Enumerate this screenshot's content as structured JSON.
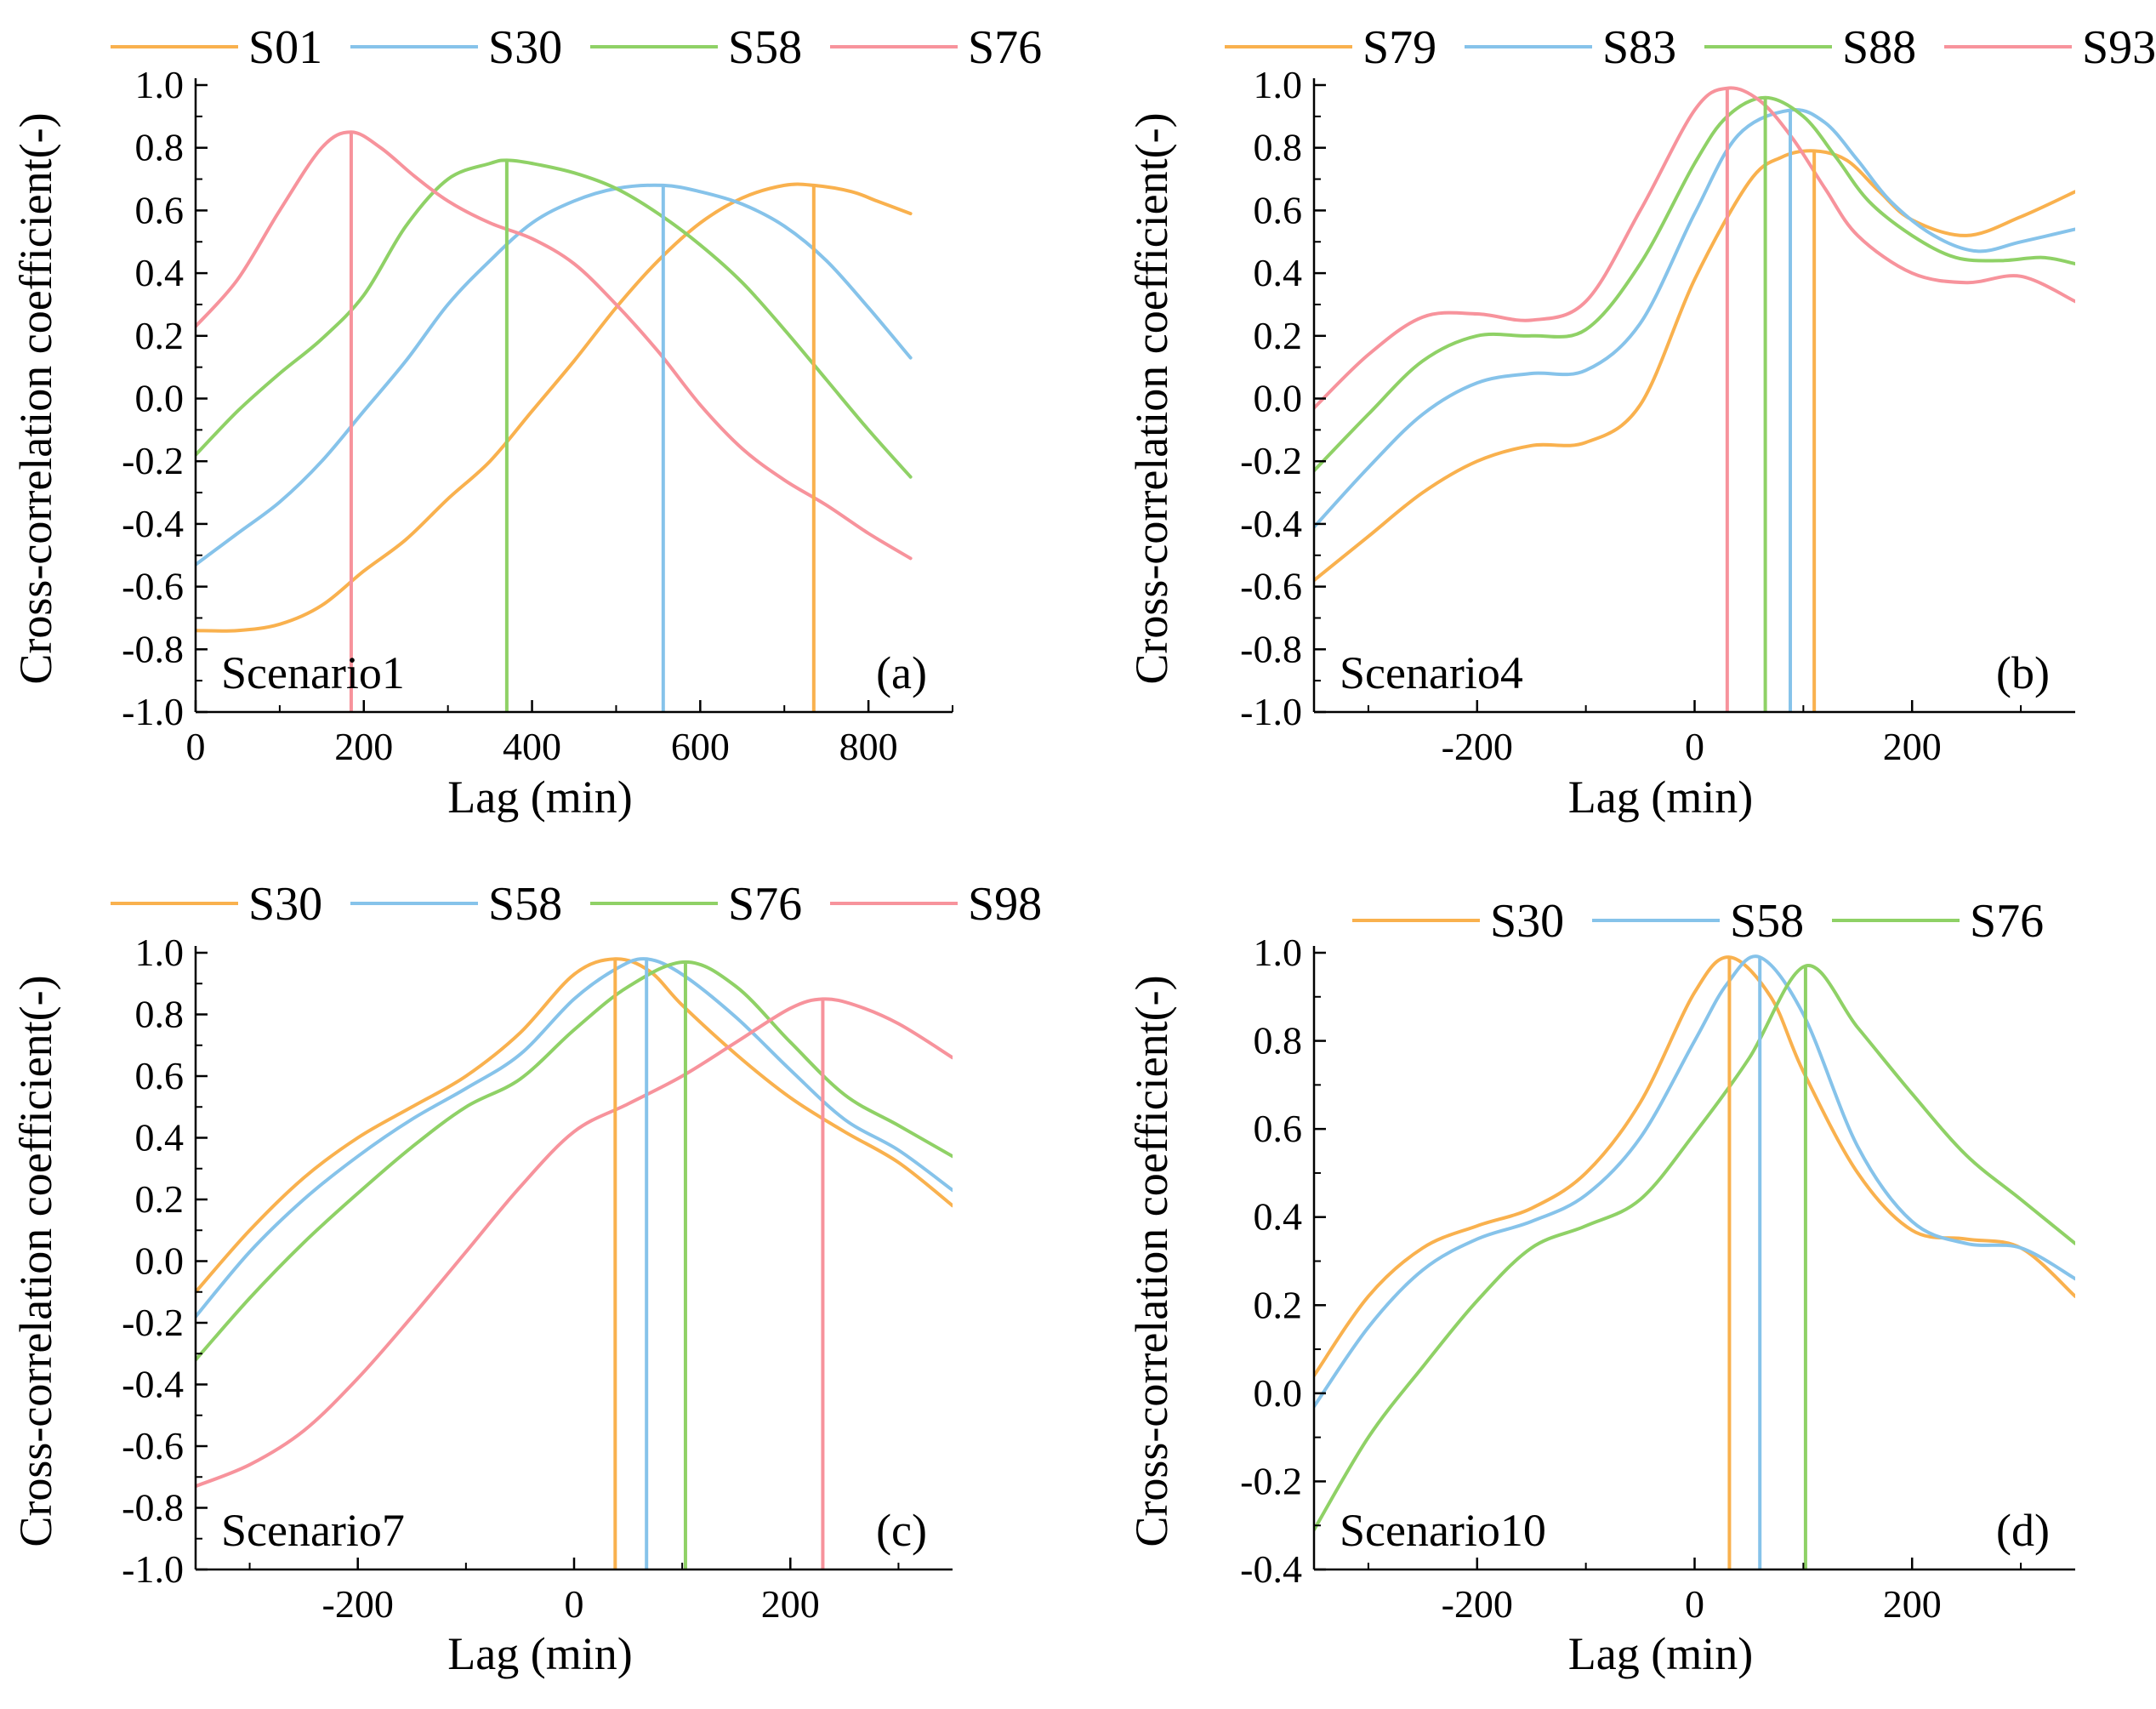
{
  "figure": {
    "colors": {
      "orange": "#f9b14e",
      "blue": "#86c3ea",
      "green": "#8fd166",
      "red": "#f7939c"
    }
  },
  "chart_data": [
    {
      "panel": "a",
      "type": "line",
      "scenario_label": "Scenario1",
      "panel_label": "(a)",
      "xlabel": "Lag (min)",
      "ylabel": "Cross-correlation coefficient(-)",
      "xlim": [
        0,
        900
      ],
      "ylim": [
        -1.0,
        1.0
      ],
      "xticks": [
        0,
        200,
        400,
        600,
        800
      ],
      "xtick_labels": [
        "0",
        "200",
        "400",
        "600",
        "800"
      ],
      "yticks": [
        -1.0,
        -0.8,
        -0.6,
        -0.4,
        -0.2,
        0.0,
        0.2,
        0.4,
        0.6,
        0.8,
        1.0
      ],
      "ytick_labels": [
        "-1.0",
        "-0.8",
        "-0.6",
        "-0.4",
        "-0.2",
        "0.0",
        "0.2",
        "0.4",
        "0.6",
        "0.8",
        "1.0"
      ],
      "legend_position": "top",
      "series": [
        {
          "name": "S01",
          "color": "#f9b14e",
          "peak_lag": 735,
          "x": [
            0,
            50,
            100,
            150,
            200,
            250,
            300,
            350,
            400,
            450,
            500,
            550,
            600,
            650,
            700,
            735,
            780,
            810,
            850
          ],
          "y": [
            -0.74,
            -0.74,
            -0.72,
            -0.66,
            -0.55,
            -0.45,
            -0.32,
            -0.2,
            -0.04,
            0.12,
            0.29,
            0.44,
            0.56,
            0.64,
            0.68,
            0.68,
            0.66,
            0.63,
            0.59
          ]
        },
        {
          "name": "S30",
          "color": "#86c3ea",
          "peak_lag": 556,
          "x": [
            0,
            50,
            100,
            150,
            200,
            250,
            300,
            350,
            400,
            450,
            500,
            556,
            600,
            650,
            700,
            750,
            800,
            850
          ],
          "y": [
            -0.53,
            -0.43,
            -0.33,
            -0.2,
            -0.04,
            0.12,
            0.3,
            0.44,
            0.56,
            0.63,
            0.67,
            0.68,
            0.66,
            0.62,
            0.55,
            0.44,
            0.29,
            0.13
          ]
        },
        {
          "name": "S58",
          "color": "#8fd166",
          "peak_lag": 370,
          "x": [
            0,
            50,
            100,
            150,
            200,
            250,
            300,
            350,
            370,
            400,
            450,
            500,
            550,
            600,
            650,
            700,
            750,
            800,
            850
          ],
          "y": [
            -0.18,
            -0.04,
            0.08,
            0.19,
            0.33,
            0.55,
            0.7,
            0.75,
            0.76,
            0.75,
            0.72,
            0.67,
            0.59,
            0.49,
            0.37,
            0.22,
            0.06,
            -0.1,
            -0.25
          ]
        },
        {
          "name": "S76",
          "color": "#f7939c",
          "peak_lag": 185,
          "x": [
            0,
            50,
            100,
            150,
            185,
            220,
            260,
            300,
            350,
            400,
            450,
            500,
            550,
            600,
            650,
            700,
            750,
            800,
            850
          ],
          "y": [
            0.23,
            0.38,
            0.6,
            0.8,
            0.85,
            0.8,
            0.71,
            0.63,
            0.56,
            0.51,
            0.43,
            0.3,
            0.15,
            -0.02,
            -0.16,
            -0.26,
            -0.34,
            -0.43,
            -0.51
          ]
        }
      ]
    },
    {
      "panel": "b",
      "type": "line",
      "scenario_label": "Scenario4",
      "panel_label": "(b)",
      "xlabel": "Lag (min)",
      "ylabel": "Cross-correlation coefficient(-)",
      "xlim": [
        -350,
        350
      ],
      "ylim": [
        -1.0,
        1.0
      ],
      "xticks": [
        -200,
        0,
        200
      ],
      "xtick_labels": [
        "-200",
        "0",
        "200"
      ],
      "yticks": [
        -1.0,
        -0.8,
        -0.6,
        -0.4,
        -0.2,
        0.0,
        0.2,
        0.4,
        0.6,
        0.8,
        1.0
      ],
      "ytick_labels": [
        "-1.0",
        "-0.8",
        "-0.6",
        "-0.4",
        "-0.2",
        "0.0",
        "0.2",
        "0.4",
        "0.6",
        "0.8",
        "1.0"
      ],
      "legend_position": "top",
      "series": [
        {
          "name": "S79",
          "color": "#f9b14e",
          "peak_lag": 110,
          "x": [
            -350,
            -300,
            -250,
            -200,
            -150,
            -100,
            -50,
            0,
            50,
            80,
            110,
            140,
            170,
            200,
            250,
            300,
            350
          ],
          "y": [
            -0.58,
            -0.44,
            -0.3,
            -0.2,
            -0.15,
            -0.14,
            -0.02,
            0.38,
            0.69,
            0.77,
            0.79,
            0.76,
            0.66,
            0.57,
            0.52,
            0.58,
            0.66
          ]
        },
        {
          "name": "S83",
          "color": "#86c3ea",
          "peak_lag": 88,
          "x": [
            -350,
            -300,
            -250,
            -200,
            -150,
            -100,
            -50,
            0,
            40,
            88,
            120,
            150,
            180,
            220,
            260,
            300,
            350
          ],
          "y": [
            -0.41,
            -0.22,
            -0.05,
            0.05,
            0.08,
            0.09,
            0.24,
            0.59,
            0.84,
            0.92,
            0.88,
            0.76,
            0.63,
            0.52,
            0.47,
            0.5,
            0.54
          ]
        },
        {
          "name": "S88",
          "color": "#8fd166",
          "peak_lag": 65,
          "x": [
            -350,
            -300,
            -250,
            -200,
            -150,
            -100,
            -50,
            0,
            30,
            65,
            100,
            130,
            160,
            200,
            240,
            280,
            320,
            350
          ],
          "y": [
            -0.23,
            -0.05,
            0.12,
            0.2,
            0.2,
            0.22,
            0.43,
            0.75,
            0.9,
            0.96,
            0.9,
            0.77,
            0.63,
            0.52,
            0.45,
            0.44,
            0.45,
            0.43
          ]
        },
        {
          "name": "S93",
          "color": "#f7939c",
          "peak_lag": 30,
          "x": [
            -350,
            -300,
            -250,
            -200,
            -150,
            -100,
            -50,
            0,
            30,
            60,
            90,
            120,
            150,
            200,
            250,
            300,
            350
          ],
          "y": [
            -0.03,
            0.14,
            0.26,
            0.27,
            0.25,
            0.31,
            0.6,
            0.92,
            0.99,
            0.95,
            0.83,
            0.67,
            0.52,
            0.4,
            0.37,
            0.39,
            0.31
          ]
        }
      ]
    },
    {
      "panel": "c",
      "type": "line",
      "scenario_label": "Scenario7",
      "panel_label": "(c)",
      "xlabel": "Lag (min)",
      "ylabel": "Cross-correlation coefficient(-)",
      "xlim": [
        -350,
        350
      ],
      "ylim": [
        -1.0,
        1.0
      ],
      "xticks": [
        -200,
        0,
        200
      ],
      "xtick_labels": [
        "-200",
        "0",
        "200"
      ],
      "yticks": [
        -1.0,
        -0.8,
        -0.6,
        -0.4,
        -0.2,
        0.0,
        0.2,
        0.4,
        0.6,
        0.8,
        1.0
      ],
      "ytick_labels": [
        "-1.0",
        "-0.8",
        "-0.6",
        "-0.4",
        "-0.2",
        "0.0",
        "0.2",
        "0.4",
        "0.6",
        "0.8",
        "1.0"
      ],
      "legend_position": "top",
      "series": [
        {
          "name": "S30",
          "color": "#f9b14e",
          "peak_lag": 38,
          "x": [
            -350,
            -300,
            -250,
            -200,
            -150,
            -100,
            -50,
            0,
            38,
            70,
            100,
            150,
            200,
            250,
            300,
            350
          ],
          "y": [
            -0.1,
            0.1,
            0.27,
            0.4,
            0.5,
            0.6,
            0.74,
            0.93,
            0.98,
            0.94,
            0.83,
            0.67,
            0.53,
            0.42,
            0.32,
            0.18
          ]
        },
        {
          "name": "S58",
          "color": "#86c3ea",
          "peak_lag": 67,
          "x": [
            -350,
            -300,
            -250,
            -200,
            -150,
            -100,
            -50,
            0,
            40,
            67,
            100,
            150,
            200,
            250,
            300,
            350
          ],
          "y": [
            -0.18,
            0.03,
            0.2,
            0.34,
            0.46,
            0.56,
            0.67,
            0.85,
            0.95,
            0.98,
            0.93,
            0.79,
            0.62,
            0.46,
            0.36,
            0.23
          ]
        },
        {
          "name": "S76",
          "color": "#8fd166",
          "peak_lag": 103,
          "x": [
            -350,
            -300,
            -250,
            -200,
            -150,
            -100,
            -50,
            0,
            50,
            103,
            150,
            200,
            250,
            300,
            350
          ],
          "y": [
            -0.32,
            -0.12,
            0.06,
            0.22,
            0.37,
            0.5,
            0.59,
            0.75,
            0.89,
            0.97,
            0.89,
            0.71,
            0.54,
            0.44,
            0.34
          ]
        },
        {
          "name": "S98",
          "color": "#f7939c",
          "peak_lag": 230,
          "x": [
            -350,
            -300,
            -250,
            -200,
            -150,
            -100,
            -50,
            0,
            50,
            100,
            150,
            200,
            230,
            260,
            300,
            350
          ],
          "y": [
            -0.73,
            -0.66,
            -0.55,
            -0.38,
            -0.18,
            0.03,
            0.24,
            0.42,
            0.51,
            0.6,
            0.71,
            0.82,
            0.85,
            0.83,
            0.77,
            0.66
          ]
        }
      ]
    },
    {
      "panel": "d",
      "type": "line",
      "scenario_label": "Scenario10",
      "panel_label": "(d)",
      "xlabel": "Lag (min)",
      "ylabel": "Cross-correlation coefficient(-)",
      "xlim": [
        -350,
        350
      ],
      "ylim": [
        -0.4,
        1.0
      ],
      "xticks": [
        -200,
        0,
        200
      ],
      "xtick_labels": [
        "-200",
        "0",
        "200"
      ],
      "yticks": [
        -0.4,
        -0.2,
        0.0,
        0.2,
        0.4,
        0.6,
        0.8,
        1.0
      ],
      "ytick_labels": [
        "-0.4",
        "-0.2",
        "0.0",
        "0.2",
        "0.4",
        "0.6",
        "0.8",
        "1.0"
      ],
      "legend_position": "top",
      "series": [
        {
          "name": "S30",
          "color": "#f9b14e",
          "peak_lag": 32,
          "x": [
            -350,
            -300,
            -250,
            -200,
            -150,
            -100,
            -50,
            0,
            32,
            70,
            100,
            150,
            200,
            250,
            300,
            350
          ],
          "y": [
            0.04,
            0.22,
            0.33,
            0.38,
            0.42,
            0.5,
            0.66,
            0.91,
            0.99,
            0.9,
            0.73,
            0.5,
            0.37,
            0.35,
            0.33,
            0.22
          ]
        },
        {
          "name": "S58",
          "color": "#86c3ea",
          "peak_lag": 60,
          "x": [
            -350,
            -300,
            -250,
            -200,
            -150,
            -100,
            -50,
            0,
            30,
            60,
            100,
            150,
            200,
            250,
            300,
            350
          ],
          "y": [
            -0.03,
            0.15,
            0.28,
            0.35,
            0.39,
            0.45,
            0.58,
            0.8,
            0.93,
            0.99,
            0.86,
            0.56,
            0.39,
            0.34,
            0.33,
            0.26
          ]
        },
        {
          "name": "S76",
          "color": "#8fd166",
          "peak_lag": 102,
          "x": [
            -350,
            -300,
            -250,
            -200,
            -150,
            -100,
            -50,
            0,
            50,
            102,
            150,
            200,
            250,
            300,
            350
          ],
          "y": [
            -0.31,
            -0.1,
            0.06,
            0.21,
            0.33,
            0.38,
            0.44,
            0.59,
            0.76,
            0.97,
            0.83,
            0.68,
            0.54,
            0.44,
            0.34
          ]
        }
      ]
    }
  ]
}
